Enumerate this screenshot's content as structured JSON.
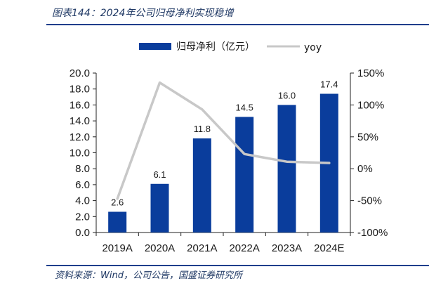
{
  "header": {
    "title": "图表144：2024年公司归母净利实现稳增"
  },
  "footer": {
    "source": "资料来源：Wind，公司公告，国盛证券研究所"
  },
  "colors": {
    "bar": "#0a3d9c",
    "line": "#c8c8c8",
    "accent": "#1f3e8c"
  },
  "chart_data": {
    "type": "bar",
    "categories": [
      "2019A",
      "2020A",
      "2021A",
      "2022A",
      "2023A",
      "2024E"
    ],
    "series": [
      {
        "name": "归母净利（亿元）",
        "type": "bar",
        "axis": "left",
        "values": [
          2.6,
          6.1,
          11.8,
          14.5,
          16.0,
          17.4
        ],
        "labels": [
          "2.6",
          "6.1",
          "11.8",
          "14.5",
          "16.0",
          "17.4"
        ]
      },
      {
        "name": "yoy",
        "type": "line",
        "axis": "right",
        "values": [
          -47,
          135,
          93,
          23,
          11,
          9
        ]
      }
    ],
    "ylim": [
      0,
      20
    ],
    "yticks": [
      "0.0",
      "2.0",
      "4.0",
      "6.0",
      "8.0",
      "10.0",
      "12.0",
      "14.0",
      "16.0",
      "18.0",
      "20.0"
    ],
    "y2lim": [
      -100,
      150
    ],
    "y2ticks": [
      "-100%",
      "-50%",
      "0%",
      "50%",
      "100%",
      "150%"
    ],
    "legend": "top",
    "grid": false
  }
}
